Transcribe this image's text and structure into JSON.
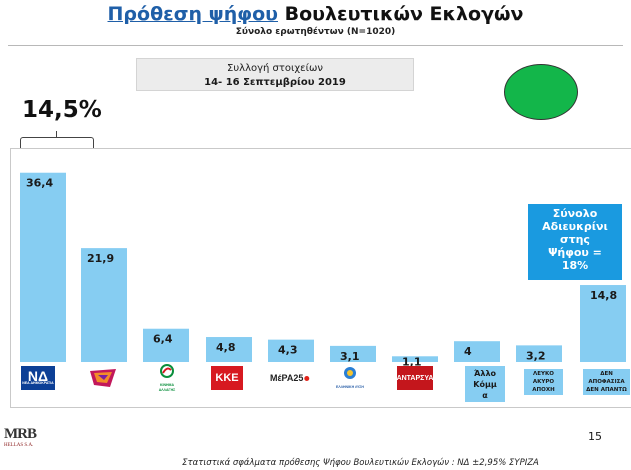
{
  "title_part1": "Πρόθεση ψήφου",
  "title_part2": "Βουλευτικών Εκλογών",
  "subtitle": "Σύνολο ερωτηθέντων (Ν=1020)",
  "period_label": "Συλλογή στοιχείων",
  "period_dates": "14- 16 Σεπτεμβρίου 2019",
  "lead_difference": "14,5%",
  "colors": {
    "bar": "#86cdf2",
    "callout": "#1a9ae0",
    "circle": "#13b64a",
    "title": "#1f5fa8"
  },
  "chart_data": {
    "type": "bar",
    "categories": [
      "ΝΕΑ ΔΗΜΟΚΡΑΤΙΑ",
      "ΣΥΡΙΖΑ",
      "ΚΙΝΗΜΑ ΑΛΛΑΓΗΣ",
      "ΚΚΕ",
      "ΜέΡΑ25",
      "ΕΛΛΗΝΙΚΗ ΛΥΣΗ",
      "ΑΝΤΑΡΣΥΑ",
      "Άλλο Κόμμα",
      "ΛΕΥΚΟ ΑΚΥΡΟ ΑΠΟΧΗ",
      "ΔΕΝ ΑΠΟΦΑΣΙΣΑ ΔΕΝ ΑΠΑΝΤΩ"
    ],
    "values": [
      36.4,
      21.9,
      6.4,
      4.8,
      4.3,
      3.1,
      1.1,
      4,
      3.2,
      14.8
    ],
    "value_labels": [
      "36,4",
      "21,9",
      "6,4",
      "4,8",
      "4,3",
      "3,1",
      "1,1",
      "4",
      "3,2",
      "14,8"
    ],
    "ylim": [
      0,
      40
    ]
  },
  "logos": {
    "nd": "ΝΔ",
    "nd_sub": "ΝΕΑ ΔΗΜΟΚΡΑΤΙΑ",
    "pasok_sub": "ΚΙΝΗΜΑ ΑΛΛΑΓΗΣ",
    "kke": "ΚΚΕ",
    "mera": "MέΡΑ25",
    "elliniki_sub": "ΕΛΛΗΝΙΚΗ ΛΥΣΗ",
    "antarsya": "ΑΝΤΑΡΣΥΑ"
  },
  "category_boxes": {
    "allo": [
      "Άλλο",
      "Κόμμ",
      "α"
    ],
    "lefko": [
      "ΛΕΥΚΟ",
      "ΑΚΥΡΟ",
      "ΑΠΟΧΗ"
    ],
    "den": [
      "ΔΕΝ",
      "ΑΠΟΦΑΣΙΣΑ",
      "ΔΕΝ ΑΠΑΝΤΩ"
    ]
  },
  "callout_lines": [
    "Σύνολο",
    "Αδιευκρίνι",
    "στης",
    "Ψήφου =",
    "18%"
  ],
  "page_number": "15",
  "brand": "MRB",
  "brand_sub": "HELLAS S.A.",
  "footer_note": "Στατιστικά σφάλματα πρόθεσης Ψήφου Βουλευτικών Εκλογών : ΝΔ ±2,95% ΣΥΡΙΖΑ"
}
